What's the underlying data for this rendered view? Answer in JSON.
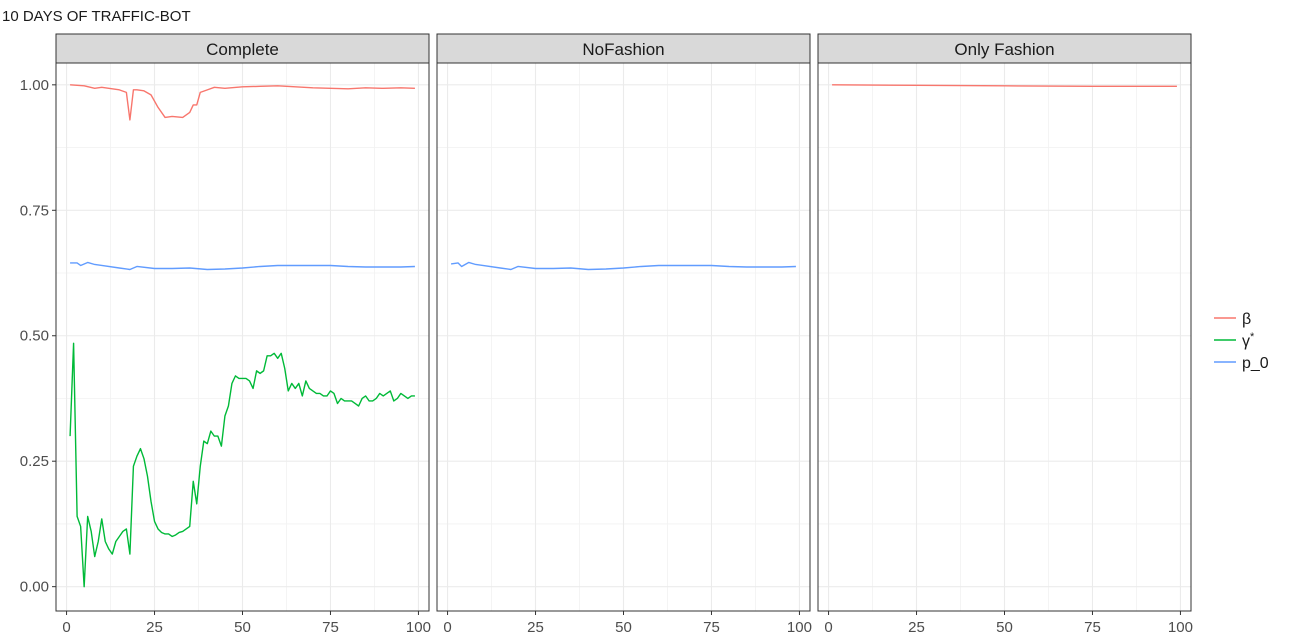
{
  "chart_data": {
    "type": "line",
    "title": "10 DAYS OF TRAFFIC-BOT",
    "xlabel": "",
    "ylabel": "",
    "xlim": [
      -3,
      103
    ],
    "ylim": [
      -0.0485,
      1.0435
    ],
    "grid": true,
    "legend_position": "right",
    "x_ticks": [
      0,
      25,
      50,
      75,
      100
    ],
    "x_tick_labels": [
      "0",
      "25",
      "50",
      "75",
      "100"
    ],
    "y_ticks": [
      0.0,
      0.25,
      0.5,
      0.75,
      1.0
    ],
    "y_tick_labels": [
      "0.00",
      "0.25",
      "0.50",
      "0.75",
      "1.00"
    ],
    "series_colors": {
      "beta": "#F8766D",
      "gamma": "#00BA38",
      "p0": "#619CFF"
    },
    "legend": [
      {
        "key": "beta",
        "label": "β",
        "sup": ""
      },
      {
        "key": "gamma",
        "label": "γ",
        "sup": "*"
      },
      {
        "key": "p0",
        "label": "p_0",
        "sup": ""
      }
    ],
    "panels": [
      {
        "label": "Complete",
        "series": [
          {
            "key": "beta",
            "x": [
              1,
              5,
              8,
              10,
              13,
              15,
              17,
              18,
              19,
              20,
              22,
              24,
              26,
              28,
              30,
              33,
              35,
              36,
              37,
              38,
              40,
              42,
              45,
              50,
              55,
              60,
              65,
              70,
              75,
              80,
              85,
              90,
              95,
              99
            ],
            "y": [
              1.0,
              0.998,
              0.993,
              0.995,
              0.992,
              0.99,
              0.985,
              0.93,
              0.99,
              0.99,
              0.988,
              0.98,
              0.955,
              0.935,
              0.937,
              0.935,
              0.945,
              0.96,
              0.96,
              0.985,
              0.99,
              0.995,
              0.993,
              0.996,
              0.997,
              0.998,
              0.996,
              0.994,
              0.993,
              0.992,
              0.994,
              0.993,
              0.994,
              0.993
            ]
          },
          {
            "key": "gamma",
            "x": [
              1,
              2,
              3,
              4,
              5,
              6,
              7,
              8,
              9,
              10,
              11,
              12,
              13,
              14,
              15,
              16,
              17,
              18,
              19,
              20,
              21,
              22,
              23,
              24,
              25,
              26,
              27,
              28,
              29,
              30,
              31,
              32,
              33,
              34,
              35,
              36,
              37,
              38,
              39,
              40,
              41,
              42,
              43,
              44,
              45,
              46,
              47,
              48,
              49,
              50,
              51,
              52,
              53,
              54,
              55,
              56,
              57,
              58,
              59,
              60,
              61,
              62,
              63,
              64,
              65,
              66,
              67,
              68,
              69,
              70,
              71,
              72,
              73,
              74,
              75,
              76,
              77,
              78,
              79,
              80,
              81,
              82,
              83,
              84,
              85,
              86,
              87,
              88,
              89,
              90,
              91,
              92,
              93,
              94,
              95,
              96,
              97,
              98,
              99
            ],
            "y": [
              0.3,
              0.485,
              0.14,
              0.12,
              0.0,
              0.14,
              0.11,
              0.06,
              0.09,
              0.135,
              0.09,
              0.075,
              0.065,
              0.09,
              0.1,
              0.11,
              0.115,
              0.065,
              0.24,
              0.26,
              0.275,
              0.255,
              0.22,
              0.17,
              0.13,
              0.115,
              0.108,
              0.105,
              0.105,
              0.1,
              0.103,
              0.108,
              0.11,
              0.115,
              0.12,
              0.21,
              0.165,
              0.24,
              0.29,
              0.285,
              0.31,
              0.3,
              0.3,
              0.28,
              0.34,
              0.36,
              0.405,
              0.42,
              0.415,
              0.415,
              0.415,
              0.41,
              0.395,
              0.43,
              0.425,
              0.43,
              0.46,
              0.46,
              0.465,
              0.455,
              0.465,
              0.435,
              0.39,
              0.405,
              0.395,
              0.405,
              0.38,
              0.41,
              0.395,
              0.39,
              0.385,
              0.385,
              0.38,
              0.38,
              0.39,
              0.385,
              0.365,
              0.375,
              0.37,
              0.37,
              0.37,
              0.365,
              0.36,
              0.375,
              0.38,
              0.37,
              0.37,
              0.375,
              0.385,
              0.38,
              0.385,
              0.39,
              0.37,
              0.375,
              0.385,
              0.38,
              0.375,
              0.38,
              0.38
            ]
          },
          {
            "key": "p0",
            "x": [
              1,
              3,
              4,
              6,
              8,
              10,
              15,
              18,
              20,
              25,
              30,
              35,
              40,
              45,
              50,
              55,
              60,
              65,
              70,
              75,
              80,
              85,
              90,
              95,
              99
            ],
            "y": [
              0.645,
              0.645,
              0.64,
              0.646,
              0.642,
              0.64,
              0.635,
              0.632,
              0.638,
              0.634,
              0.634,
              0.635,
              0.632,
              0.633,
              0.635,
              0.638,
              0.64,
              0.64,
              0.64,
              0.64,
              0.638,
              0.637,
              0.637,
              0.637,
              0.638
            ]
          }
        ]
      },
      {
        "label": "NoFashion",
        "series": [
          {
            "key": "p0",
            "x": [
              1,
              3,
              4,
              6,
              8,
              10,
              15,
              18,
              20,
              25,
              30,
              35,
              40,
              45,
              50,
              55,
              60,
              65,
              70,
              75,
              80,
              85,
              90,
              95,
              99
            ],
            "y": [
              0.643,
              0.645,
              0.638,
              0.646,
              0.642,
              0.64,
              0.635,
              0.632,
              0.638,
              0.634,
              0.634,
              0.635,
              0.632,
              0.633,
              0.635,
              0.638,
              0.64,
              0.64,
              0.64,
              0.64,
              0.638,
              0.637,
              0.637,
              0.637,
              0.638
            ]
          }
        ]
      },
      {
        "label": "Only Fashion",
        "series": [
          {
            "key": "beta",
            "x": [
              1,
              25,
              50,
              75,
              99
            ],
            "y": [
              1.0,
              0.999,
              0.998,
              0.997,
              0.997
            ]
          }
        ]
      }
    ]
  }
}
